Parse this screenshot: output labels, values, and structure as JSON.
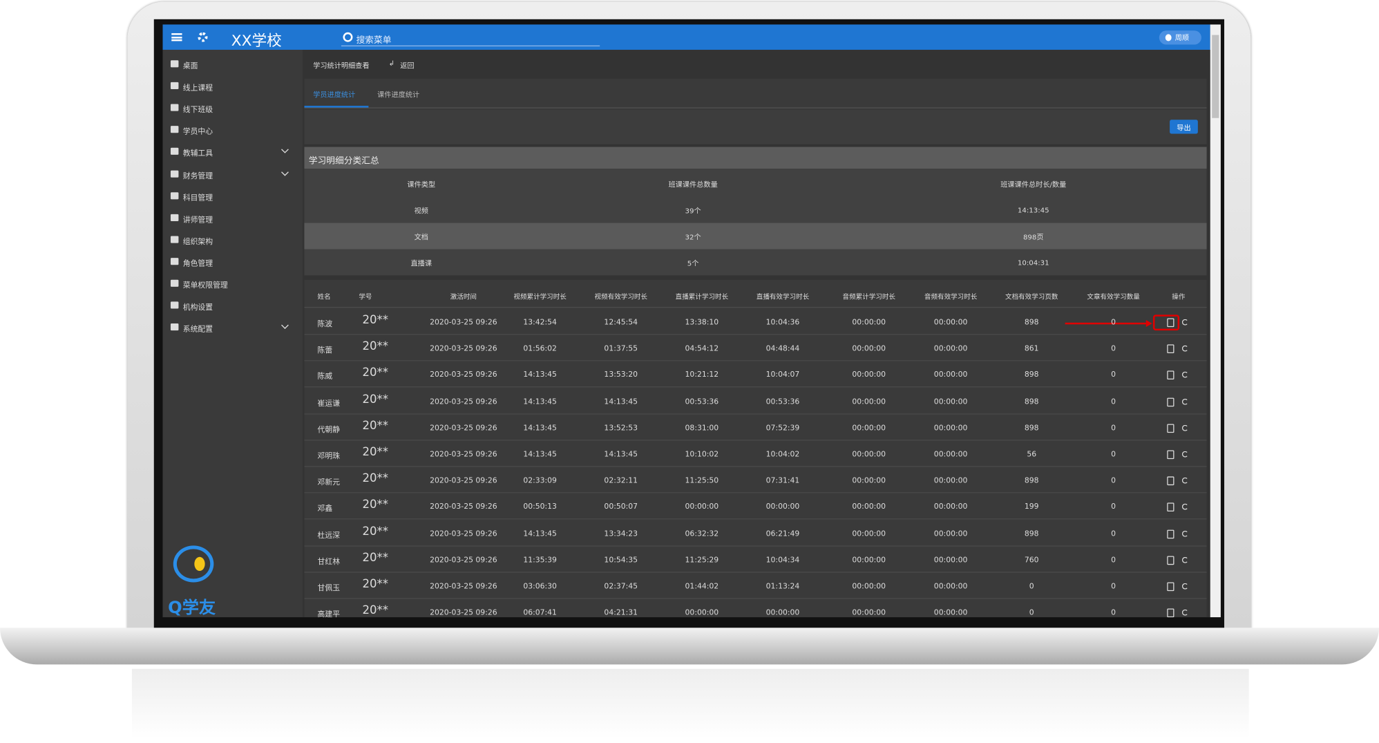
{
  "header": {
    "school_name": "XX学校",
    "search_placeholder": "搜索菜单",
    "user_name": "周顺"
  },
  "sidebar": {
    "items": [
      {
        "label": "桌面",
        "expandable": false
      },
      {
        "label": "线上课程",
        "expandable": false
      },
      {
        "label": "线下班级",
        "expandable": false
      },
      {
        "label": "学员中心",
        "expandable": false
      },
      {
        "label": "教辅工具",
        "expandable": true
      },
      {
        "label": "财务管理",
        "expandable": true
      },
      {
        "label": "科目管理",
        "expandable": false
      },
      {
        "label": "讲师管理",
        "expandable": false
      },
      {
        "label": "组织架构",
        "expandable": false
      },
      {
        "label": "角色管理",
        "expandable": false
      },
      {
        "label": "菜单权限管理",
        "expandable": false
      },
      {
        "label": "机构设置",
        "expandable": false
      },
      {
        "label": "系统配置",
        "expandable": true
      }
    ],
    "logo_text": "Q学友"
  },
  "breadcrumb": {
    "title": "学习统计明细查看",
    "back": "返回"
  },
  "tabs": [
    {
      "label": "学员进度统计",
      "active": true
    },
    {
      "label": "课件进度统计",
      "active": false
    }
  ],
  "export_button": "导出",
  "summary": {
    "title": "学习明细分类汇总",
    "headers": [
      "课件类型",
      "班课课件总数量",
      "班课课件总时长/数量"
    ],
    "rows": [
      [
        "视频",
        "39个",
        "14:13:45"
      ],
      [
        "文档",
        "32个",
        "898页"
      ],
      [
        "直播课",
        "5个",
        "10:04:31"
      ]
    ]
  },
  "table": {
    "headers": [
      "姓名",
      "学号",
      "激活时间",
      "视频累计学习时长",
      "视频有效学习时长",
      "直播累计学习时长",
      "直播有效学习时长",
      "音频累计学习时长",
      "音频有效学习时长",
      "文档有效学习页数",
      "文章有效学习数量",
      "操作"
    ],
    "rows": [
      [
        "陈波",
        "20**",
        "2020-03-25 09:26",
        "13:42:54",
        "12:45:54",
        "13:38:10",
        "10:04:36",
        "00:00:00",
        "00:00:00",
        "898",
        "0"
      ],
      [
        "陈蕾",
        "20**",
        "2020-03-25 09:26",
        "01:56:02",
        "01:37:55",
        "04:54:12",
        "04:48:44",
        "00:00:00",
        "00:00:00",
        "861",
        "0"
      ],
      [
        "陈威",
        "20**",
        "2020-03-25 09:26",
        "14:13:45",
        "13:53:20",
        "10:21:12",
        "10:04:07",
        "00:00:00",
        "00:00:00",
        "898",
        "0"
      ],
      [
        "崔运谦",
        "20**",
        "2020-03-25 09:26",
        "14:13:45",
        "14:13:45",
        "00:53:36",
        "00:53:36",
        "00:00:00",
        "00:00:00",
        "898",
        "0"
      ],
      [
        "代朝静",
        "20**",
        "2020-03-25 09:26",
        "14:13:45",
        "13:52:53",
        "08:31:00",
        "07:52:39",
        "00:00:00",
        "00:00:00",
        "898",
        "0"
      ],
      [
        "邓明珠",
        "20**",
        "2020-03-25 09:26",
        "14:13:45",
        "14:13:45",
        "10:10:02",
        "10:04:02",
        "00:00:00",
        "00:00:00",
        "56",
        "0"
      ],
      [
        "邓新元",
        "20**",
        "2020-03-25 09:26",
        "02:33:09",
        "02:32:11",
        "11:25:50",
        "07:31:41",
        "00:00:00",
        "00:00:00",
        "898",
        "0"
      ],
      [
        "邓鑫",
        "20**",
        "2020-03-25 09:26",
        "00:50:13",
        "00:50:07",
        "00:00:00",
        "00:00:00",
        "00:00:00",
        "00:00:00",
        "199",
        "0"
      ],
      [
        "杜远深",
        "20**",
        "2020-03-25 09:26",
        "14:13:45",
        "13:34:23",
        "06:32:32",
        "06:21:49",
        "00:00:00",
        "00:00:00",
        "898",
        "0"
      ],
      [
        "甘红林",
        "20**",
        "2020-03-25 09:26",
        "11:35:39",
        "10:54:35",
        "11:25:29",
        "10:04:34",
        "00:00:00",
        "00:00:00",
        "760",
        "0"
      ],
      [
        "甘佩玉",
        "20**",
        "2020-03-25 09:26",
        "03:06:30",
        "02:37:45",
        "01:44:02",
        "01:13:24",
        "00:00:00",
        "00:00:00",
        "0",
        "0"
      ],
      [
        "高建平",
        "20**",
        "2020-03-25 09:26",
        "06:07:41",
        "04:21:31",
        "00:00:00",
        "00:00:00",
        "00:00:00",
        "00:00:00",
        "0",
        "0"
      ]
    ]
  }
}
